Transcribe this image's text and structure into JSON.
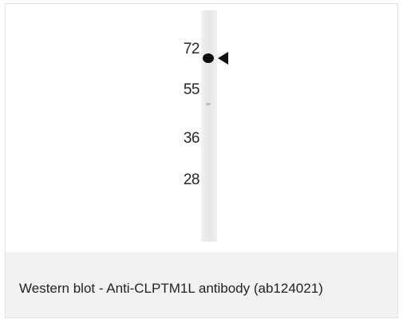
{
  "blot": {
    "markers": [
      "72",
      "55",
      "36",
      "28"
    ]
  },
  "caption": "Western blot - Anti-CLPTM1L antibody (ab124021)"
}
